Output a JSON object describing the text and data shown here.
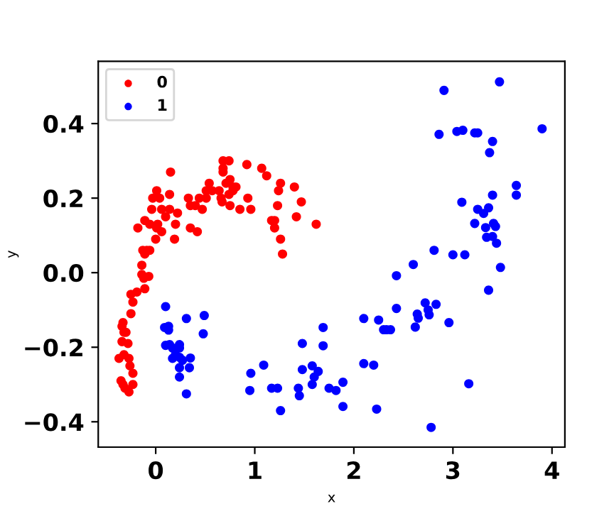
{
  "chart_data": {
    "type": "scatter",
    "xlabel": "x",
    "ylabel": "y",
    "xlim": [
      -0.58,
      4.13
    ],
    "ylim": [
      -0.468,
      0.567
    ],
    "xticks": [
      0,
      1,
      2,
      3,
      4
    ],
    "yticks": [
      {
        "value": -0.4,
        "label": "−0.4"
      },
      {
        "value": -0.2,
        "label": "−0.2"
      },
      {
        "value": 0.0,
        "label": "0.0"
      },
      {
        "value": 0.2,
        "label": "0.2"
      },
      {
        "value": 0.4,
        "label": "0.4"
      }
    ],
    "legend": "top left",
    "marker": "circle",
    "grid": false,
    "series": [
      {
        "name": "0",
        "color": "#ff0000",
        "x": [
          -0.18,
          -0.11,
          -0.04,
          -0.03,
          0.01,
          0.04,
          0.06,
          -0.06,
          0.02,
          0.01,
          0.06,
          0.0,
          0.15,
          0.14,
          0.14,
          0.1,
          0.22,
          0.2,
          0.19,
          -0.13,
          -0.09,
          -0.11,
          -0.06,
          -0.14,
          0.33,
          0.35,
          0.4,
          0.35,
          0.42,
          0.47,
          0.44,
          0.51,
          0.54,
          0.51,
          0.57,
          0.64,
          0.68,
          0.74,
          0.68,
          0.68,
          0.71,
          0.75,
          0.78,
          0.81,
          0.74,
          0.78,
          0.66,
          0.67,
          0.75,
          0.85,
          0.92,
          0.93,
          0.96,
          1.07,
          1.12,
          1.17,
          1.2,
          1.2,
          1.24,
          1.26,
          1.23,
          1.26,
          1.28,
          1.4,
          1.42,
          1.47,
          1.62,
          -0.14,
          -0.12,
          -0.07,
          -0.11,
          -0.25,
          -0.19,
          -0.23,
          -0.25,
          -0.33,
          -0.34,
          -0.32,
          -0.3,
          -0.34,
          -0.28,
          -0.37,
          -0.32,
          -0.27,
          -0.26,
          -0.23,
          -0.35,
          -0.31,
          -0.27,
          -0.23,
          -0.33
        ],
        "values": [
          0.12,
          0.14,
          0.17,
          0.2,
          0.22,
          0.2,
          0.17,
          0.13,
          0.13,
          0.12,
          0.11,
          0.09,
          0.27,
          0.21,
          0.17,
          0.15,
          0.16,
          0.13,
          0.09,
          0.06,
          0.06,
          0.05,
          0.06,
          0.02,
          0.2,
          0.18,
          0.18,
          0.12,
          0.11,
          0.17,
          0.2,
          0.2,
          0.24,
          0.22,
          0.22,
          0.22,
          0.3,
          0.3,
          0.28,
          0.27,
          0.24,
          0.25,
          0.23,
          0.23,
          0.21,
          0.22,
          0.2,
          0.19,
          0.18,
          0.17,
          0.29,
          0.2,
          0.17,
          0.28,
          0.26,
          0.14,
          0.14,
          0.12,
          0.22,
          0.24,
          0.18,
          0.09,
          0.05,
          0.23,
          0.15,
          0.19,
          0.13,
          -0.005,
          -0.015,
          -0.01,
          -0.043,
          -0.058,
          -0.052,
          -0.079,
          -0.11,
          -0.134,
          -0.144,
          -0.16,
          -0.16,
          -0.185,
          -0.19,
          -0.23,
          -0.22,
          -0.23,
          -0.25,
          -0.27,
          -0.29,
          -0.31,
          -0.32,
          -0.3,
          -0.3
        ]
      },
      {
        "name": "1",
        "color": "#0000ff",
        "x": [
          0.1,
          0.09,
          0.13,
          0.13,
          0.31,
          0.49,
          0.48,
          0.1,
          0.14,
          0.17,
          0.24,
          0.24,
          0.17,
          0.2,
          0.24,
          0.27,
          0.35,
          0.24,
          0.34,
          0.24,
          0.31,
          0.95,
          0.96,
          1.09,
          1.17,
          1.23,
          1.26,
          1.44,
          1.45,
          1.48,
          1.48,
          1.58,
          1.6,
          1.58,
          1.64,
          1.69,
          1.69,
          1.75,
          1.82,
          1.89,
          1.89,
          2.1,
          2.1,
          2.2,
          2.23,
          2.25,
          2.3,
          2.33,
          2.37,
          2.43,
          2.62,
          2.64,
          2.65,
          2.72,
          2.75,
          2.76,
          2.83,
          2.78,
          2.96,
          3.16,
          2.91,
          3.47,
          3.9,
          2.86,
          3.04,
          3.1,
          3.22,
          3.25,
          3.4,
          3.37,
          3.64,
          3.64,
          3.4,
          3.09,
          3.25,
          3.36,
          3.31,
          3.22,
          3.41,
          3.33,
          3.43,
          3.34,
          3.4,
          3.44,
          2.81,
          3.0,
          3.12,
          2.6,
          3.48,
          2.43,
          3.36
        ],
        "values": [
          -0.091,
          -0.147,
          -0.144,
          -0.154,
          -0.123,
          -0.115,
          -0.164,
          -0.195,
          -0.193,
          -0.202,
          -0.193,
          -0.202,
          -0.23,
          -0.22,
          -0.227,
          -0.235,
          -0.229,
          -0.255,
          -0.255,
          -0.28,
          -0.325,
          -0.316,
          -0.27,
          -0.248,
          -0.31,
          -0.31,
          -0.37,
          -0.31,
          -0.33,
          -0.19,
          -0.26,
          -0.25,
          -0.28,
          -0.3,
          -0.265,
          -0.147,
          -0.196,
          -0.31,
          -0.316,
          -0.294,
          -0.359,
          -0.123,
          -0.244,
          -0.248,
          -0.366,
          -0.127,
          -0.153,
          -0.153,
          -0.153,
          -0.096,
          -0.146,
          -0.111,
          -0.122,
          -0.081,
          -0.1,
          -0.113,
          -0.085,
          -0.415,
          -0.134,
          -0.298,
          0.489,
          0.512,
          0.386,
          0.371,
          0.379,
          0.382,
          0.375,
          0.375,
          0.352,
          0.322,
          0.234,
          0.208,
          0.208,
          0.189,
          0.17,
          0.174,
          0.159,
          0.132,
          0.132,
          0.121,
          0.124,
          0.095,
          0.097,
          0.079,
          0.06,
          0.048,
          0.048,
          0.022,
          0.014,
          -0.008,
          -0.047
        ]
      }
    ]
  }
}
